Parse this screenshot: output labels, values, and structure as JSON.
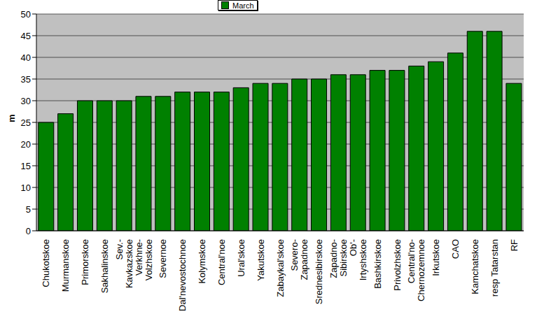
{
  "chart_data": {
    "type": "bar",
    "y_label": "m",
    "categories": [
      "Chukotskoe",
      "Murmanskoe",
      "Primorskoe",
      "Sakhalinskoe",
      "Sev.-\nKavkazskoe",
      "Verkhne-\nVolzhskoe",
      "Severnoe",
      "Dal'nevostochnoe",
      "Kolymskoe",
      "Central'noe",
      "Ural'skoe",
      "Yakutskoe",
      "Zabaykal'skoe",
      "Severo-\nZapadnoe",
      "Srednesibirskoe",
      "Zapadno-\nSibirskoe",
      "Ob'-\nIrtyshskoe",
      "Bashkirskoe",
      "Privolzhskoe",
      "Central'no-\nChernozemnoe",
      "Irkutskoe",
      "CAO",
      "Kamchatskoe",
      "resp Tatarstan",
      "RF"
    ],
    "series": [
      {
        "name": "March",
        "color": "#008000",
        "values": [
          25,
          27,
          30,
          30,
          30,
          31,
          31,
          32,
          32,
          32,
          33,
          34,
          34,
          35,
          35,
          36,
          36,
          37,
          37,
          38,
          39,
          41,
          46,
          46,
          34
        ]
      }
    ],
    "ylim": [
      0,
      50
    ],
    "yticks": [
      0,
      5,
      10,
      15,
      20,
      25,
      30,
      35,
      40,
      45,
      50
    ],
    "grid": true,
    "legend": "top"
  }
}
